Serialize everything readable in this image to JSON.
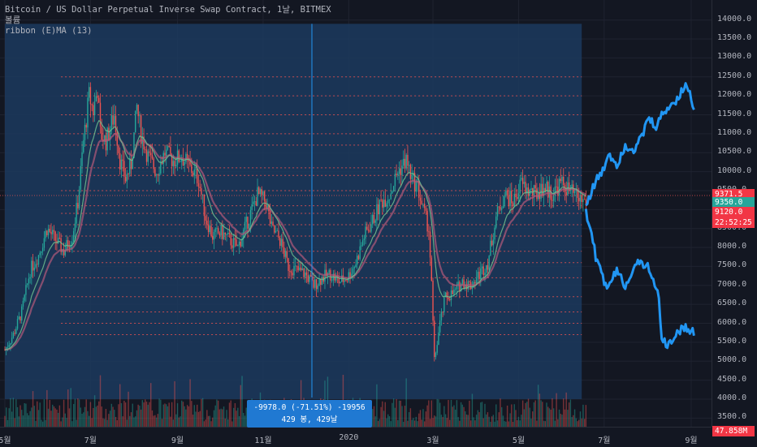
{
  "legend": {
    "title": "Bitcoin / US Dollar Perpetual Inverse Swap Contract, 1날, BITMEX",
    "line2": "볼륨",
    "line3": "ribbon (E)MA (13)"
  },
  "colors": {
    "background": "#131722",
    "selection": "#1c3a5e",
    "up": "#26a69a",
    "down": "#ef5350",
    "projection": "#2196f3",
    "level": "#ef5350",
    "tag_price": "#f23645",
    "tag_ema": "#26a69a"
  },
  "price_tags": [
    {
      "label": "9371.5",
      "value": 9371.5,
      "color": "#f23645"
    },
    {
      "label": "9350.0",
      "value": 9350.0,
      "color": "#26a69a"
    },
    {
      "label": "9120.0",
      "value": 9120.0,
      "color": "#f23645"
    },
    {
      "label": "22:52:25",
      "value": 8700,
      "color": "#f23645"
    },
    {
      "label": "47.858M",
      "value": 3580,
      "color": "#f23645"
    }
  ],
  "info_box": {
    "line1": "-9978.0 (-71.51%) -19956",
    "line2": "429 봉, 429날"
  },
  "chart_data": {
    "type": "candlestick",
    "title": "Bitcoin / US Dollar Perpetual Inverse Swap Contract, 1날, BITMEX",
    "y_ticks": [
      "14000.0",
      "13500.0",
      "13000.0",
      "12500.0",
      "12000.0",
      "11500.0",
      "11000.0",
      "10500.0",
      "10000.0",
      "9500.0",
      "9000.0",
      "8500.0",
      "8000.0",
      "7500.0",
      "7000.0",
      "6500.0",
      "6000.0",
      "5500.0",
      "5000.0",
      "4500.0",
      "4000.0",
      "3500.0"
    ],
    "y_values": [
      14000,
      13500,
      13000,
      12500,
      12000,
      11500,
      11000,
      10500,
      10000,
      9500,
      9000,
      8500,
      8000,
      7500,
      7000,
      6500,
      6000,
      5500,
      5000,
      4500,
      4000,
      3500
    ],
    "ylim": [
      3400,
      14400
    ],
    "x_ticks": [
      "5월",
      "7월",
      "9월",
      "11월",
      "2020",
      "3월",
      "5월",
      "7월",
      "9월"
    ],
    "x_positions_days": [
      0,
      61,
      123,
      184,
      245,
      305,
      366,
      427,
      489
    ],
    "price_path": [
      [
        0,
        5300
      ],
      [
        6,
        5700
      ],
      [
        12,
        6300
      ],
      [
        18,
        7400
      ],
      [
        24,
        7800
      ],
      [
        30,
        8500
      ],
      [
        36,
        8200
      ],
      [
        42,
        7900
      ],
      [
        48,
        8300
      ],
      [
        52,
        9200
      ],
      [
        56,
        10800
      ],
      [
        60,
        12000
      ],
      [
        63,
        11600
      ],
      [
        66,
        12200
      ],
      [
        68,
        11000
      ],
      [
        72,
        10800
      ],
      [
        78,
        11500
      ],
      [
        82,
        10300
      ],
      [
        86,
        9800
      ],
      [
        90,
        10200
      ],
      [
        94,
        11700
      ],
      [
        97,
        11000
      ],
      [
        102,
        10400
      ],
      [
        108,
        10000
      ],
      [
        114,
        10500
      ],
      [
        120,
        10300
      ],
      [
        126,
        10400
      ],
      [
        132,
        10100
      ],
      [
        138,
        9800
      ],
      [
        143,
        8800
      ],
      [
        148,
        8300
      ],
      [
        154,
        8400
      ],
      [
        160,
        8200
      ],
      [
        166,
        8000
      ],
      [
        172,
        8600
      ],
      [
        176,
        9000
      ],
      [
        180,
        9400
      ],
      [
        186,
        9200
      ],
      [
        190,
        8500
      ],
      [
        196,
        8200
      ],
      [
        202,
        7500
      ],
      [
        208,
        7400
      ],
      [
        214,
        7300
      ],
      [
        220,
        7000
      ],
      [
        226,
        7200
      ],
      [
        232,
        7300
      ],
      [
        238,
        7100
      ],
      [
        244,
        7200
      ],
      [
        250,
        7600
      ],
      [
        256,
        8300
      ],
      [
        262,
        8700
      ],
      [
        268,
        9200
      ],
      [
        274,
        9400
      ],
      [
        280,
        10000
      ],
      [
        286,
        10300
      ],
      [
        290,
        9800
      ],
      [
        294,
        9600
      ],
      [
        298,
        9000
      ],
      [
        302,
        8500
      ],
      [
        304,
        7000
      ],
      [
        306,
        5000
      ],
      [
        310,
        6000
      ],
      [
        314,
        6700
      ],
      [
        320,
        6800
      ],
      [
        326,
        7100
      ],
      [
        332,
        7000
      ],
      [
        338,
        7300
      ],
      [
        344,
        7600
      ],
      [
        350,
        8800
      ],
      [
        356,
        9400
      ],
      [
        362,
        9200
      ],
      [
        368,
        9700
      ],
      [
        372,
        9500
      ],
      [
        378,
        9400
      ],
      [
        384,
        9600
      ],
      [
        390,
        9400
      ],
      [
        396,
        9700
      ],
      [
        402,
        9500
      ],
      [
        408,
        9300
      ],
      [
        414,
        9200
      ]
    ],
    "ema_ribbon": "ribbon (E)MA (13)",
    "projection_up": [
      [
        414,
        9100
      ],
      [
        418,
        9500
      ],
      [
        422,
        9800
      ],
      [
        426,
        10000
      ],
      [
        430,
        10500
      ],
      [
        436,
        10200
      ],
      [
        442,
        10700
      ],
      [
        448,
        10600
      ],
      [
        454,
        10900
      ],
      [
        458,
        11400
      ],
      [
        464,
        11200
      ],
      [
        470,
        11600
      ],
      [
        476,
        11800
      ],
      [
        482,
        12100
      ],
      [
        486,
        12300
      ],
      [
        490,
        11800
      ],
      [
        492,
        11600
      ]
    ],
    "projection_down": [
      [
        414,
        9000
      ],
      [
        418,
        8300
      ],
      [
        422,
        7600
      ],
      [
        426,
        7200
      ],
      [
        430,
        6900
      ],
      [
        436,
        7400
      ],
      [
        442,
        7000
      ],
      [
        448,
        7500
      ],
      [
        454,
        7600
      ],
      [
        458,
        7500
      ],
      [
        462,
        7200
      ],
      [
        466,
        6600
      ],
      [
        468,
        5600
      ],
      [
        472,
        5400
      ],
      [
        478,
        5700
      ],
      [
        484,
        5900
      ],
      [
        488,
        5800
      ],
      [
        492,
        5700
      ]
    ],
    "levels": [
      12500,
      12000,
      11500,
      11000,
      10700,
      10100,
      9900,
      9500,
      9100,
      8900,
      8600,
      8300,
      7900,
      7600,
      7200,
      6700,
      6300,
      6000,
      5700
    ],
    "selection_range_days": [
      0,
      411
    ],
    "current_price": 9371.5
  }
}
